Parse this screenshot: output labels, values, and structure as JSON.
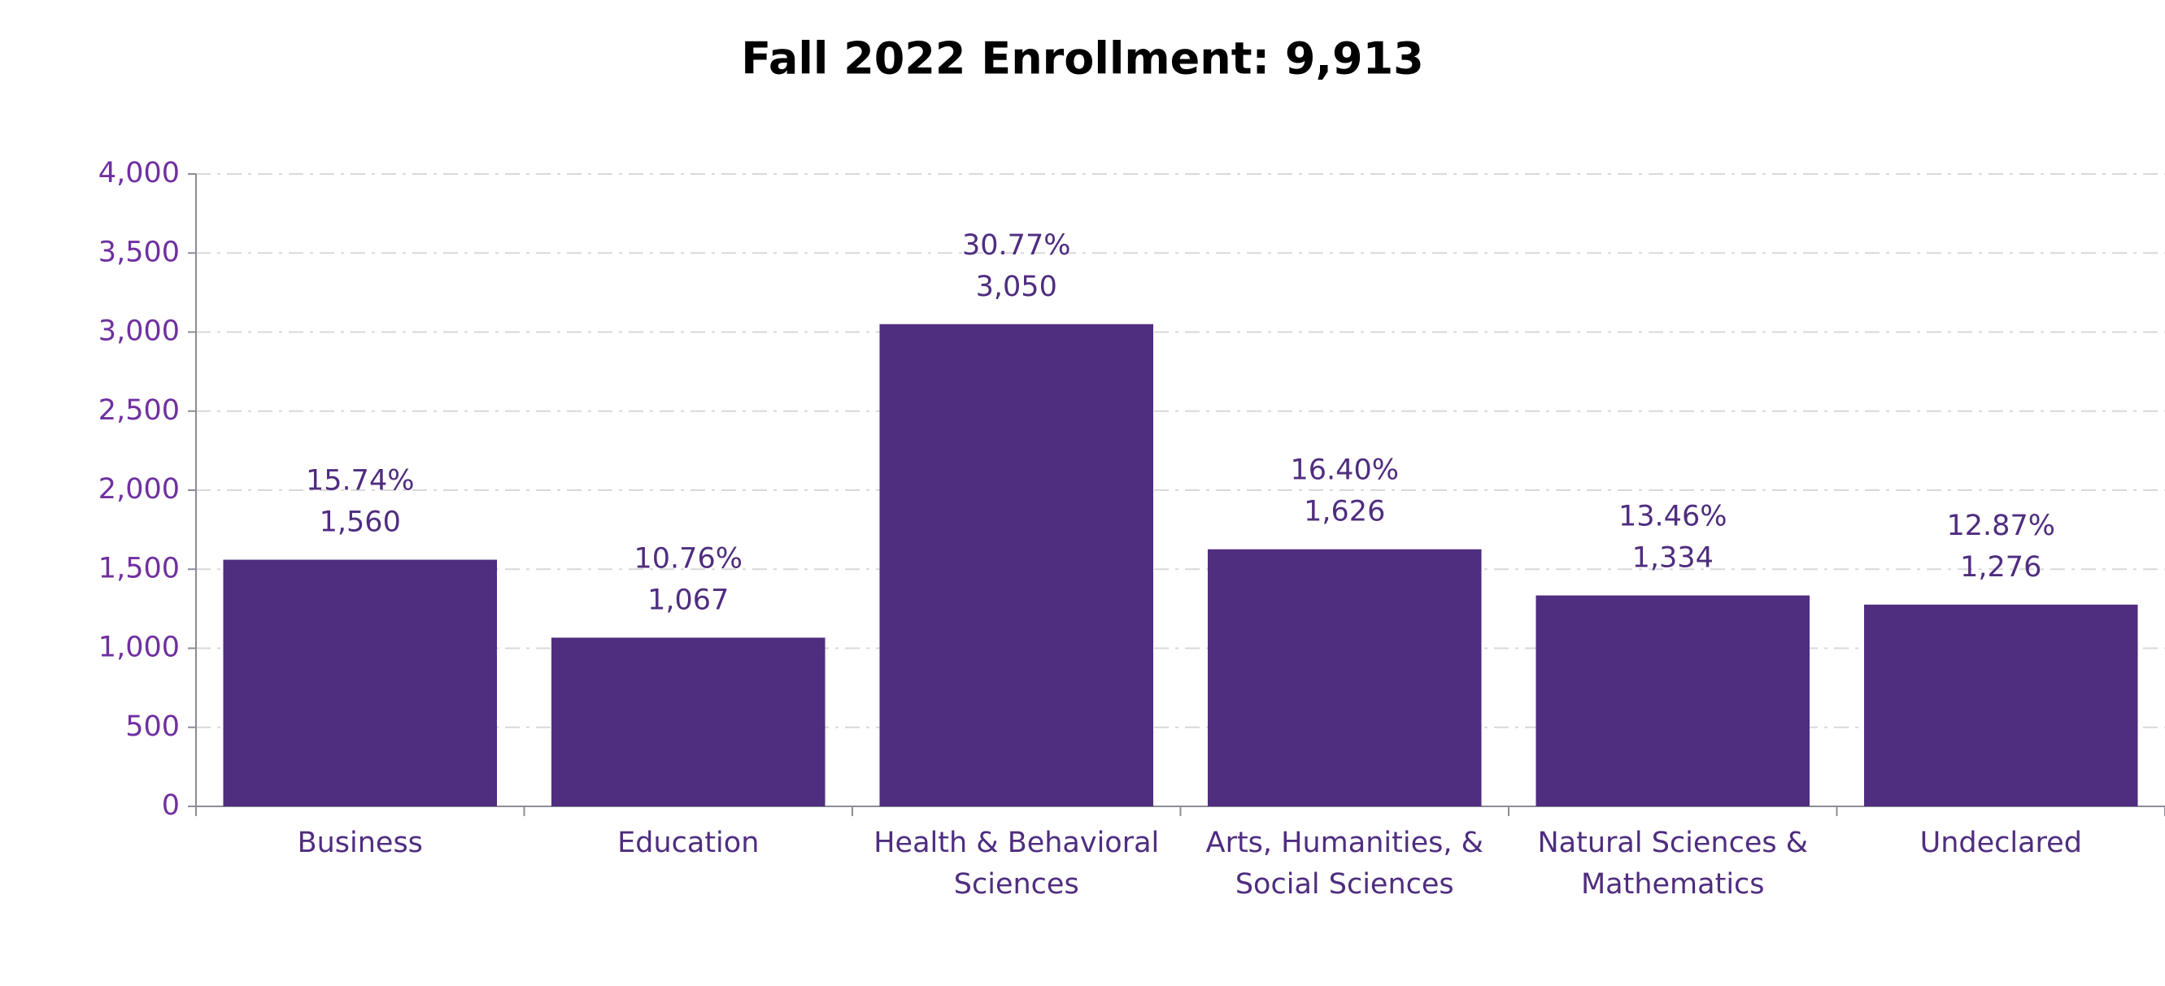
{
  "chart_data": {
    "type": "bar",
    "title": "Fall 2022 Enrollment: 9,913",
    "categories": [
      "Business",
      "Education",
      "Health & Behavioral Sciences",
      "Arts, Humanities, & Social Sciences",
      "Natural Sciences & Mathematics",
      "Undeclared"
    ],
    "values": [
      1560,
      1067,
      3050,
      1626,
      1334,
      1276
    ],
    "value_labels": [
      "1,560",
      "1,067",
      "3,050",
      "1,626",
      "1,334",
      "1,276"
    ],
    "percentages": [
      15.74,
      10.76,
      30.77,
      16.4,
      13.46,
      12.87
    ],
    "percentage_labels": [
      "15.74%",
      "10.76%",
      "30.77%",
      "16.40%",
      "13.46%",
      "12.87%"
    ],
    "color": "#4f2d7f",
    "ylim": [
      0,
      4000
    ],
    "yticks": [
      0,
      500,
      {
        "value": 1000,
        "label": "1,000"
      },
      {
        "value": 1500,
        "label": "1,500"
      },
      {
        "value": 2000,
        "label": "2,000"
      },
      {
        "value": 2500,
        "label": "2,500"
      },
      {
        "value": 3000,
        "label": "3,000"
      },
      {
        "value": 3500,
        "label": "3,500"
      },
      {
        "value": 4000,
        "label": "4,000"
      }
    ],
    "grid": true
  }
}
